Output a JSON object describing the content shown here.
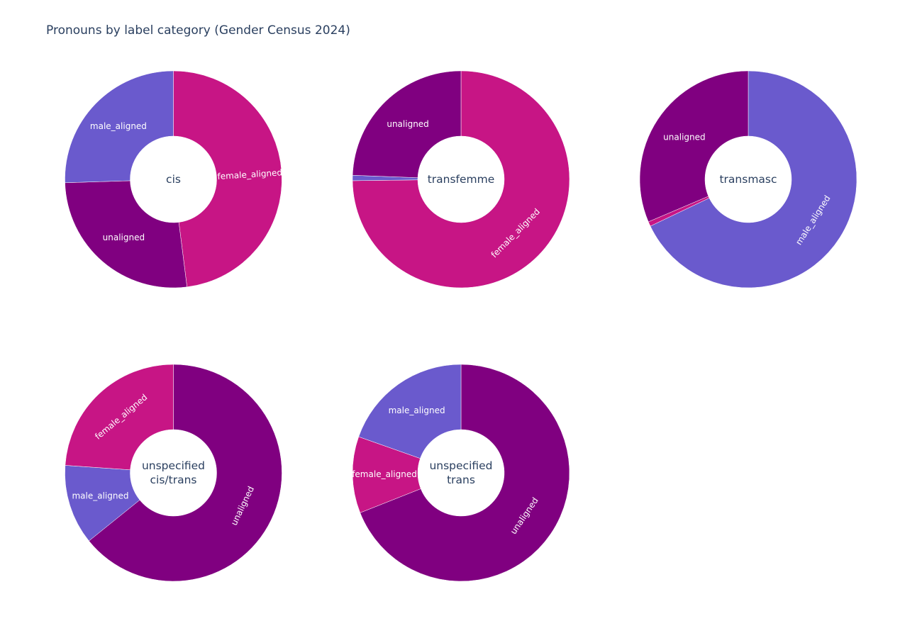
{
  "chart_data": {
    "type": "pie",
    "title": "Pronouns by label category (Gender Census 2024)",
    "colors": {
      "female_aligned": "#c71585",
      "male_aligned": "#6a5acd",
      "unaligned": "#800080"
    },
    "charts": [
      {
        "center_lines": [
          "cis"
        ],
        "slices": [
          {
            "label": "female_aligned",
            "value": 48.0
          },
          {
            "label": "unaligned",
            "value": 26.5
          },
          {
            "label": "male_aligned",
            "value": 25.5
          }
        ]
      },
      {
        "center_lines": [
          "transfemme"
        ],
        "slices": [
          {
            "label": "female_aligned",
            "value": 74.8
          },
          {
            "label": "male_aligned",
            "value": 0.8
          },
          {
            "label": "unaligned",
            "value": 24.4
          }
        ]
      },
      {
        "center_lines": [
          "transmasc"
        ],
        "slices": [
          {
            "label": "male_aligned",
            "value": 67.9
          },
          {
            "label": "female_aligned",
            "value": 0.7
          },
          {
            "label": "unaligned",
            "value": 31.4
          }
        ]
      },
      {
        "center_lines": [
          "unspecified",
          "cis/trans"
        ],
        "slices": [
          {
            "label": "unaligned",
            "value": 64.2
          },
          {
            "label": "male_aligned",
            "value": 11.9
          },
          {
            "label": "female_aligned",
            "value": 23.9
          }
        ]
      },
      {
        "center_lines": [
          "unspecified",
          "trans"
        ],
        "slices": [
          {
            "label": "unaligned",
            "value": 69.0
          },
          {
            "label": "female_aligned",
            "value": 11.4
          },
          {
            "label": "male_aligned",
            "value": 19.6
          }
        ]
      }
    ]
  }
}
